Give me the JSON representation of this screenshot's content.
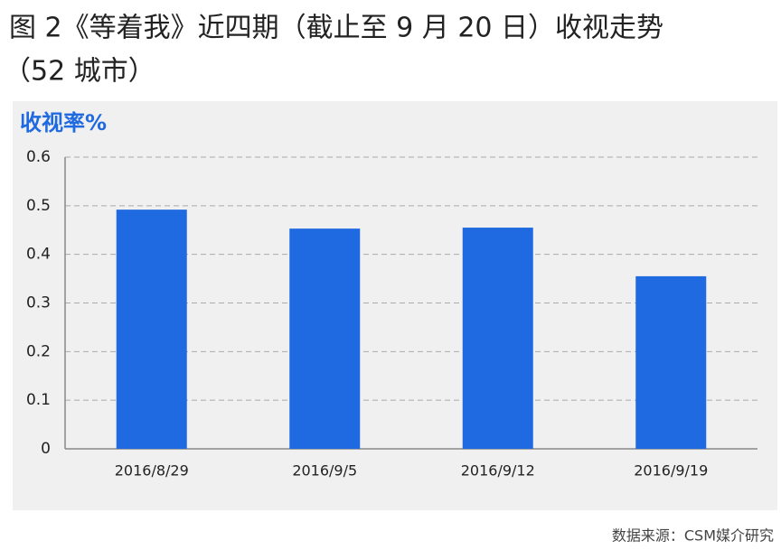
{
  "chart_data": {
    "type": "bar",
    "title": [
      "图 2《等着我》近四期（截止至 9 月 20 日）收视走势",
      "（52 城市）"
    ],
    "y_label": "收视率%",
    "categories": [
      "2016/8/29",
      "2016/9/5",
      "2016/9/12",
      "2016/9/19"
    ],
    "values": [
      0.492,
      0.453,
      0.455,
      0.355
    ],
    "color": "#1f6ae0",
    "ylim": [
      0,
      0.6
    ],
    "yticks": [
      0,
      0.1,
      0.2,
      0.3,
      0.4,
      0.5,
      0.6
    ],
    "grid": true,
    "source": "数据来源：CSM媒介研究"
  }
}
